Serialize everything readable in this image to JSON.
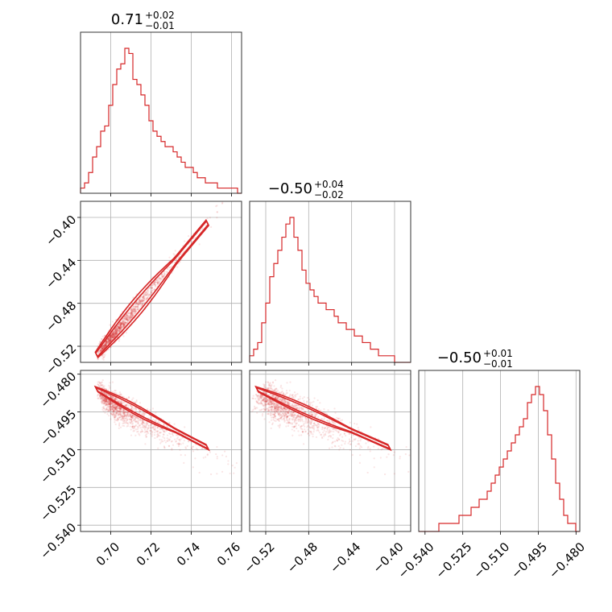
{
  "chart_data": {
    "type": "corner",
    "color": "#d62728",
    "fill_color": "#f2b8ba",
    "grid": true,
    "parameters": [
      {
        "title": {
          "main": "0.71",
          "plus": "+0.02",
          "minus": "−0.01"
        },
        "range": [
          0.685,
          0.765
        ],
        "ticks": [
          0.7,
          0.72,
          0.74,
          0.76
        ],
        "tick_labels": [
          "0.70",
          "0.72",
          "0.74",
          "0.76"
        ],
        "hist": [
          1,
          2,
          4,
          7,
          9,
          12,
          13,
          17,
          21,
          24,
          25,
          28,
          27,
          22,
          21,
          19,
          17,
          14,
          12,
          11,
          10,
          9,
          9,
          8,
          7,
          6,
          5,
          5,
          4,
          3,
          3,
          2,
          2,
          2,
          1,
          1,
          1,
          1,
          1,
          0
        ],
        "hist_max": 28
      },
      {
        "title": {
          "main": "−0.50",
          "plus": "+0.04",
          "minus": "−0.02"
        },
        "range": [
          -0.535,
          -0.385
        ],
        "ticks": [
          -0.52,
          -0.48,
          -0.44,
          -0.4
        ],
        "tick_labels": [
          "−0.52",
          "−0.48",
          "−0.44",
          "−0.40"
        ],
        "hist": [
          1,
          2,
          3,
          6,
          9,
          13,
          15,
          17,
          19,
          21,
          22,
          19,
          17,
          14,
          12,
          11,
          10,
          9,
          9,
          8,
          8,
          7,
          6,
          6,
          5,
          5,
          4,
          4,
          3,
          3,
          2,
          2,
          1,
          1,
          1,
          1,
          0,
          0,
          0,
          0
        ],
        "hist_max": 22
      },
      {
        "title": {
          "main": "−0.50",
          "plus": "+0.01",
          "minus": "−0.01"
        },
        "range": [
          -0.5425,
          -0.4785
        ],
        "ticks": [
          -0.54,
          -0.525,
          -0.51,
          -0.495,
          -0.48
        ],
        "tick_labels": [
          "−0.540",
          "−0.525",
          "−0.510",
          "−0.495",
          "−0.480"
        ],
        "hist": [
          0,
          0,
          0,
          0,
          0,
          1,
          1,
          1,
          1,
          1,
          2,
          2,
          2,
          3,
          3,
          4,
          4,
          5,
          6,
          7,
          8,
          9,
          10,
          11,
          12,
          13,
          14,
          16,
          17,
          18,
          17,
          15,
          12,
          9,
          6,
          4,
          2,
          1,
          1,
          0
        ],
        "hist_max": 18
      }
    ]
  }
}
